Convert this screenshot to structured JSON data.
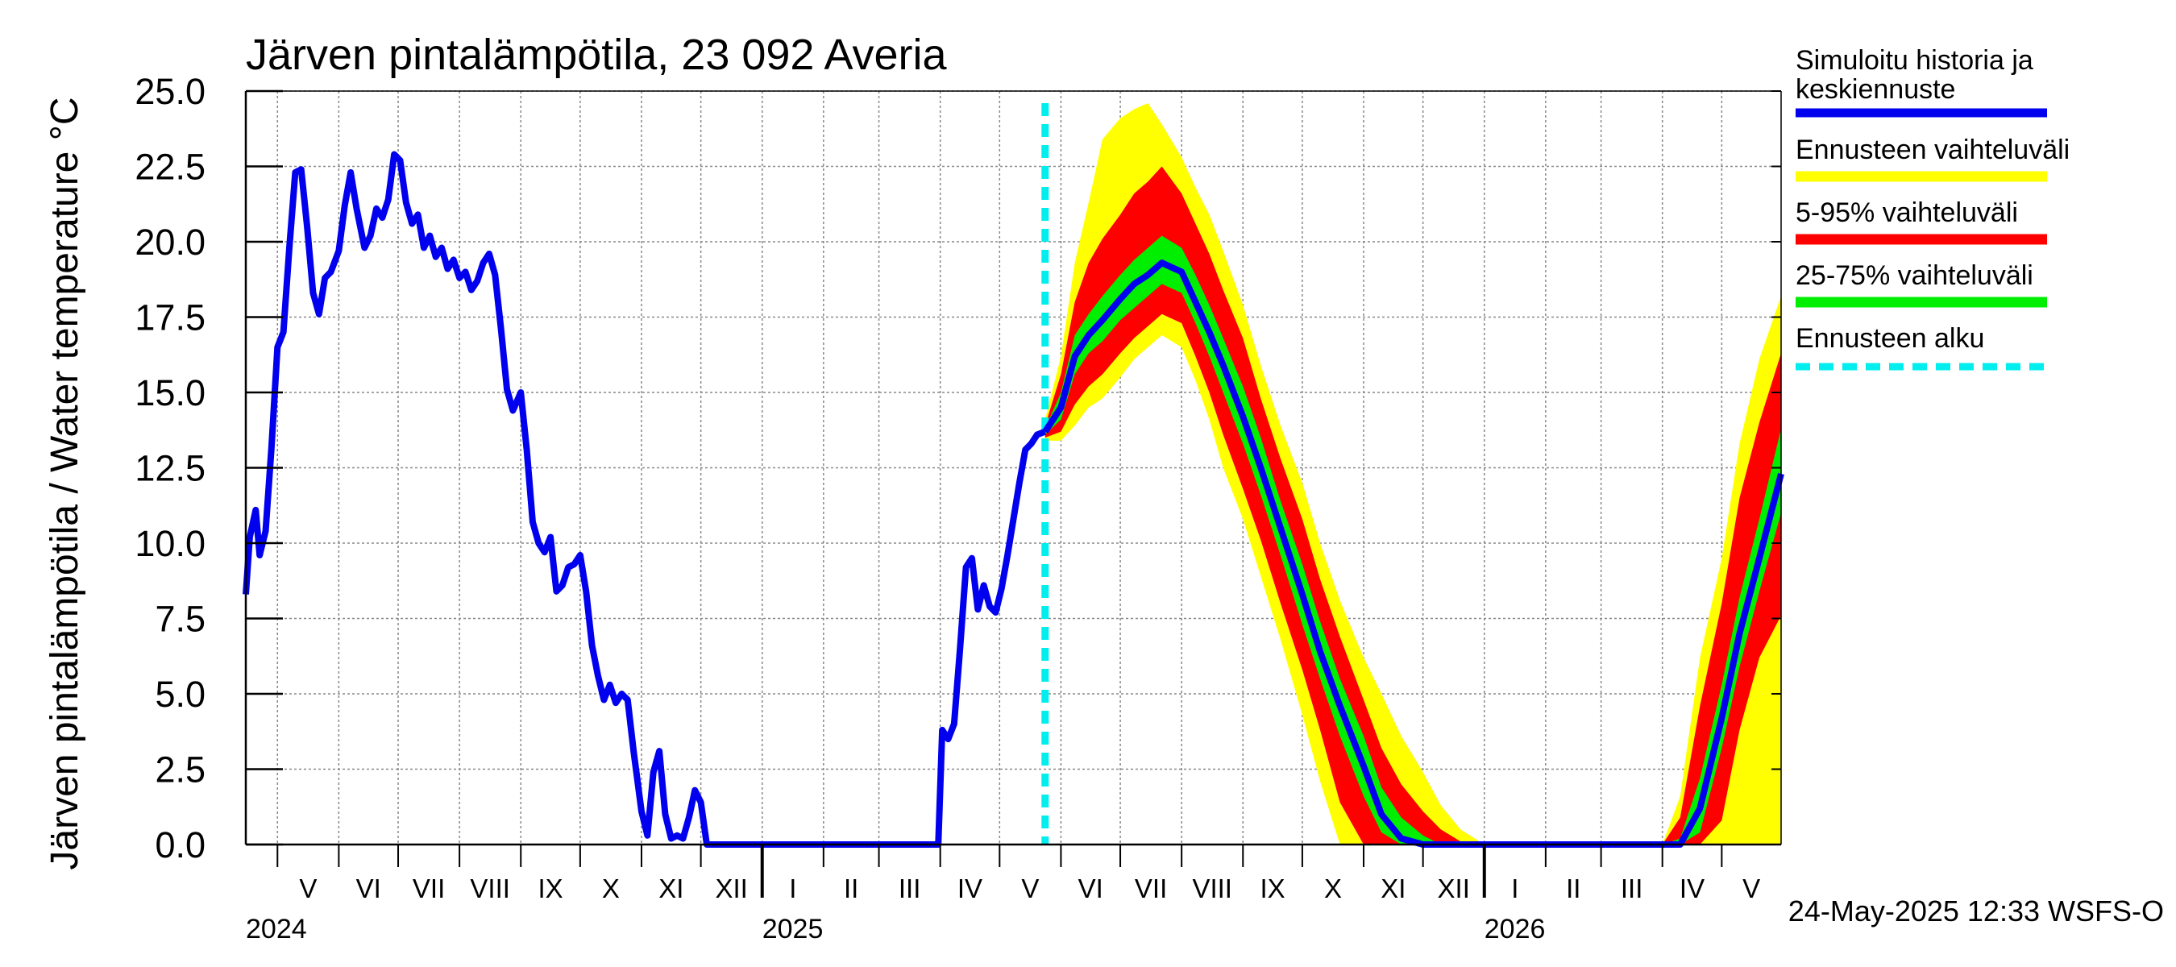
{
  "colors": {
    "median": "#0000ee",
    "range_full": "#ffff00",
    "range_5_95": "#ff0000",
    "range_25_75": "#00ee00",
    "forecast_start": "#00eeee",
    "grid": "#888888"
  },
  "chart_data": {
    "type": "line",
    "title": "Järven pintalämpötila, 23 092 Averia",
    "ylabel": "Järven pintalämpötila / Water temperature °C",
    "xlabel": "",
    "ylim": [
      0,
      25
    ],
    "yticks": [
      "0.0",
      "2.5",
      "5.0",
      "7.5",
      "10.0",
      "12.5",
      "15.0",
      "17.5",
      "20.0",
      "22.5",
      "25.0"
    ],
    "xlim": [
      "2024-04-15",
      "2026-05-31"
    ],
    "grid": true,
    "legend_position": "right",
    "month_labels": [
      {
        "label": "V",
        "start": "2024-05-01",
        "end": "2024-06-01"
      },
      {
        "label": "VI",
        "start": "2024-06-01",
        "end": "2024-07-01"
      },
      {
        "label": "VII",
        "start": "2024-07-01",
        "end": "2024-08-01"
      },
      {
        "label": "VIII",
        "start": "2024-08-01",
        "end": "2024-09-01"
      },
      {
        "label": "IX",
        "start": "2024-09-01",
        "end": "2024-10-01"
      },
      {
        "label": "X",
        "start": "2024-10-01",
        "end": "2024-11-01"
      },
      {
        "label": "XI",
        "start": "2024-11-01",
        "end": "2024-12-01"
      },
      {
        "label": "XII",
        "start": "2024-12-01",
        "end": "2025-01-01"
      },
      {
        "label": "I",
        "start": "2025-01-01",
        "end": "2025-02-01"
      },
      {
        "label": "II",
        "start": "2025-02-01",
        "end": "2025-03-01"
      },
      {
        "label": "III",
        "start": "2025-03-01",
        "end": "2025-04-01"
      },
      {
        "label": "IV",
        "start": "2025-04-01",
        "end": "2025-05-01"
      },
      {
        "label": "V",
        "start": "2025-05-01",
        "end": "2025-06-01"
      },
      {
        "label": "VI",
        "start": "2025-06-01",
        "end": "2025-07-01"
      },
      {
        "label": "VII",
        "start": "2025-07-01",
        "end": "2025-08-01"
      },
      {
        "label": "VIII",
        "start": "2025-08-01",
        "end": "2025-09-01"
      },
      {
        "label": "IX",
        "start": "2025-09-01",
        "end": "2025-10-01"
      },
      {
        "label": "X",
        "start": "2025-10-01",
        "end": "2025-11-01"
      },
      {
        "label": "XI",
        "start": "2025-11-01",
        "end": "2025-12-01"
      },
      {
        "label": "XII",
        "start": "2025-12-01",
        "end": "2026-01-01"
      },
      {
        "label": "I",
        "start": "2026-01-01",
        "end": "2026-02-01"
      },
      {
        "label": "II",
        "start": "2026-02-01",
        "end": "2026-03-01"
      },
      {
        "label": "III",
        "start": "2026-03-01",
        "end": "2026-04-01"
      },
      {
        "label": "IV",
        "start": "2026-04-01",
        "end": "2026-05-01"
      },
      {
        "label": "V",
        "start": "2026-05-01",
        "end": "2026-05-31"
      }
    ],
    "year_labels": [
      {
        "label": "2024",
        "date": "2024-04-15"
      },
      {
        "label": "2025",
        "date": "2025-01-01"
      },
      {
        "label": "2026",
        "date": "2026-01-01"
      }
    ],
    "forecast_start": "2025-05-24",
    "legend": {
      "median": "Simuloitu historia ja keskiennuste",
      "range_full": "Ennusteen vaihteluväli",
      "range_5_95": "5-95% vaihteluväli",
      "range_25_75": "25-75% vaihteluväli",
      "forecast_start": "Ennusteen alku"
    },
    "footer": "24-May-2025 12:33 WSFS-O",
    "series": [
      {
        "role": "history",
        "x": [
          "2024-04-15",
          "2024-04-17",
          "2024-04-20",
          "2024-04-22",
          "2024-04-25",
          "2024-04-28",
          "2024-05-01",
          "2024-05-04",
          "2024-05-07",
          "2024-05-10",
          "2024-05-13",
          "2024-05-16",
          "2024-05-19",
          "2024-05-22",
          "2024-05-25",
          "2024-05-28",
          "2024-06-01",
          "2024-06-04",
          "2024-06-07",
          "2024-06-10",
          "2024-06-14",
          "2024-06-17",
          "2024-06-20",
          "2024-06-23",
          "2024-06-26",
          "2024-06-29",
          "2024-07-02",
          "2024-07-05",
          "2024-07-08",
          "2024-07-11",
          "2024-07-14",
          "2024-07-17",
          "2024-07-20",
          "2024-07-23",
          "2024-07-26",
          "2024-07-29",
          "2024-08-01",
          "2024-08-04",
          "2024-08-07",
          "2024-08-10",
          "2024-08-13",
          "2024-08-16",
          "2024-08-19",
          "2024-08-22",
          "2024-08-25",
          "2024-08-28",
          "2024-09-01",
          "2024-09-04",
          "2024-09-07",
          "2024-09-10",
          "2024-09-13",
          "2024-09-16",
          "2024-09-19",
          "2024-09-22",
          "2024-09-25",
          "2024-09-28",
          "2024-10-01",
          "2024-10-04",
          "2024-10-07",
          "2024-10-10",
          "2024-10-13",
          "2024-10-16",
          "2024-10-19",
          "2024-10-22",
          "2024-10-25",
          "2024-10-28",
          "2024-11-01",
          "2024-11-04",
          "2024-11-07",
          "2024-11-10",
          "2024-11-13",
          "2024-11-16",
          "2024-11-19",
          "2024-11-22",
          "2024-11-25",
          "2024-11-28",
          "2024-12-01",
          "2024-12-04",
          "2024-12-07",
          "2024-12-10",
          "2024-12-13",
          "2024-12-16",
          "2024-12-19",
          "2024-12-22",
          "2024-12-25",
          "2024-12-28",
          "2025-01-01",
          "2025-01-15",
          "2025-02-01",
          "2025-03-01",
          "2025-03-15",
          "2025-03-31",
          "2025-04-02",
          "2025-04-05",
          "2025-04-08",
          "2025-04-11",
          "2025-04-14",
          "2025-04-17",
          "2025-04-20",
          "2025-04-23",
          "2025-04-26",
          "2025-04-29",
          "2025-05-02",
          "2025-05-05",
          "2025-05-08",
          "2025-05-11",
          "2025-05-14",
          "2025-05-17",
          "2025-05-20",
          "2025-05-24"
        ],
        "y": [
          8.3,
          10.2,
          11.1,
          9.6,
          10.4,
          13.2,
          16.5,
          17.0,
          19.8,
          22.3,
          22.4,
          20.5,
          18.3,
          17.6,
          18.8,
          19.0,
          19.7,
          21.2,
          22.3,
          21.1,
          19.8,
          20.2,
          21.1,
          20.8,
          21.4,
          22.9,
          22.7,
          21.3,
          20.6,
          20.9,
          19.8,
          20.2,
          19.5,
          19.8,
          19.1,
          19.4,
          18.8,
          19.0,
          18.4,
          18.7,
          19.3,
          19.6,
          18.9,
          17.1,
          15.1,
          14.4,
          15.0,
          13.1,
          10.7,
          10.0,
          9.7,
          10.2,
          8.4,
          8.6,
          9.2,
          9.3,
          9.6,
          8.4,
          6.6,
          5.6,
          4.8,
          5.3,
          4.7,
          5.0,
          4.8,
          3.1,
          1.1,
          0.3,
          2.4,
          3.1,
          1.0,
          0.2,
          0.3,
          0.2,
          0.9,
          1.8,
          1.4,
          0.0,
          0.0,
          0.0,
          0.0,
          0.0,
          0.0,
          0.0,
          0.0,
          0.0,
          0.0,
          0.0,
          0.0,
          0.0,
          0.0,
          0.0,
          3.8,
          3.5,
          4.0,
          6.5,
          9.2,
          9.5,
          7.8,
          8.6,
          7.9,
          7.7,
          8.5,
          9.6,
          10.8,
          12.0,
          13.1,
          13.3,
          13.6,
          13.7
        ]
      },
      {
        "role": "forecast",
        "x": [
          "2025-05-24",
          "2025-06-01",
          "2025-06-08",
          "2025-06-15",
          "2025-06-22",
          "2025-07-01",
          "2025-07-08",
          "2025-07-15",
          "2025-07-22",
          "2025-08-01",
          "2025-08-08",
          "2025-08-15",
          "2025-08-22",
          "2025-09-01",
          "2025-09-10",
          "2025-09-20",
          "2025-10-01",
          "2025-10-10",
          "2025-10-20",
          "2025-11-01",
          "2025-11-10",
          "2025-11-20",
          "2025-12-01",
          "2025-12-10",
          "2025-12-20",
          "2026-01-01",
          "2026-02-01",
          "2026-03-01",
          "2026-04-01",
          "2026-04-10",
          "2026-04-20",
          "2026-05-01",
          "2026-05-10",
          "2026-05-20",
          "2026-05-31"
        ],
        "median": [
          13.7,
          14.5,
          16.2,
          16.9,
          17.4,
          18.1,
          18.6,
          18.9,
          19.3,
          19.0,
          18.0,
          17.0,
          15.9,
          14.2,
          12.5,
          10.5,
          8.3,
          6.4,
          4.6,
          2.6,
          1.0,
          0.2,
          0.0,
          0.0,
          0.0,
          0.0,
          0.0,
          0.0,
          0.0,
          0.0,
          1.2,
          4.2,
          7.0,
          9.5,
          12.3
        ],
        "p25": [
          13.6,
          14.1,
          15.6,
          16.3,
          16.7,
          17.4,
          17.8,
          18.2,
          18.6,
          18.3,
          17.3,
          16.2,
          15.0,
          13.3,
          11.6,
          9.6,
          7.3,
          5.5,
          3.6,
          1.6,
          0.4,
          0.0,
          0.0,
          0.0,
          0.0,
          0.0,
          0.0,
          0.0,
          0.0,
          0.0,
          0.4,
          3.2,
          5.9,
          8.4,
          11.0
        ],
        "p75": [
          13.8,
          15.0,
          16.9,
          17.6,
          18.2,
          18.9,
          19.4,
          19.8,
          20.2,
          19.8,
          18.9,
          17.9,
          16.8,
          15.2,
          13.5,
          11.4,
          9.3,
          7.4,
          5.5,
          3.6,
          1.9,
          0.9,
          0.3,
          0.0,
          0.0,
          0.0,
          0.0,
          0.0,
          0.0,
          0.2,
          2.2,
          5.3,
          8.2,
          10.8,
          13.8
        ],
        "p5": [
          13.5,
          13.7,
          14.6,
          15.2,
          15.6,
          16.3,
          16.8,
          17.2,
          17.6,
          17.3,
          16.2,
          15.0,
          13.6,
          11.8,
          10.1,
          8.0,
          5.8,
          3.8,
          1.4,
          0.0,
          0.0,
          0.0,
          0.0,
          0.0,
          0.0,
          0.0,
          0.0,
          0.0,
          0.0,
          0.0,
          0.0,
          0.8,
          3.8,
          6.2,
          7.6
        ],
        "p95": [
          13.9,
          15.6,
          18.0,
          19.3,
          20.1,
          20.9,
          21.6,
          22.0,
          22.5,
          21.6,
          20.6,
          19.6,
          18.4,
          16.8,
          14.8,
          12.8,
          10.8,
          8.8,
          6.9,
          4.8,
          3.2,
          2.0,
          1.1,
          0.5,
          0.1,
          0.0,
          0.0,
          0.0,
          0.0,
          0.9,
          4.6,
          8.0,
          11.5,
          14.0,
          16.3
        ],
        "min": [
          13.4,
          13.4,
          13.9,
          14.5,
          14.8,
          15.5,
          16.1,
          16.5,
          16.9,
          16.5,
          15.4,
          14.1,
          12.5,
          10.8,
          8.9,
          6.8,
          4.3,
          2.1,
          0.0,
          0.0,
          0.0,
          0.0,
          0.0,
          0.0,
          0.0,
          0.0,
          0.0,
          0.0,
          0.0,
          0.0,
          0.0,
          0.0,
          0.0,
          0.0,
          0.0
        ],
        "max": [
          14.1,
          16.2,
          19.3,
          21.3,
          23.4,
          24.1,
          24.4,
          24.6,
          23.9,
          22.8,
          21.8,
          20.9,
          19.7,
          17.9,
          15.9,
          13.9,
          12.0,
          10.0,
          8.1,
          6.2,
          5.0,
          3.6,
          2.4,
          1.3,
          0.5,
          0.0,
          0.0,
          0.0,
          0.0,
          1.6,
          6.2,
          9.5,
          13.3,
          16.1,
          18.2
        ]
      }
    ]
  }
}
